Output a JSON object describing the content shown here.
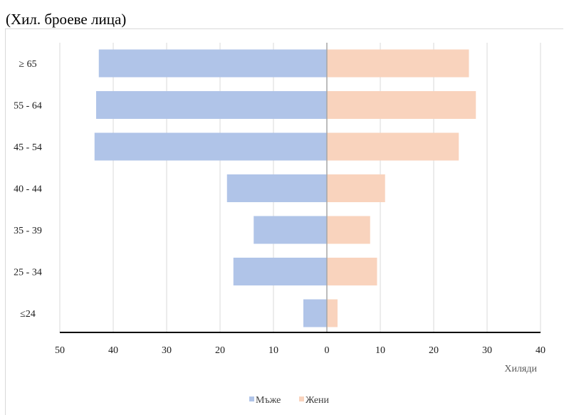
{
  "header": {
    "units": "(Хил. броеве лица)"
  },
  "chart_data": {
    "type": "bar",
    "orientation": "horizontal",
    "layout": "population-pyramid",
    "categories": [
      "≥ 65",
      "55 - 64",
      "45 - 54",
      "40 - 44",
      "35 - 39",
      "25 - 34",
      "≤24"
    ],
    "series": [
      {
        "name": "Мъже",
        "values": [
          42.7,
          43.2,
          43.5,
          18.7,
          13.7,
          17.5,
          4.4
        ],
        "color": "#b0c4e8",
        "side": "left"
      },
      {
        "name": "Жени",
        "values": [
          26.6,
          27.9,
          24.7,
          10.9,
          8.1,
          9.4,
          2.0
        ],
        "color": "#f9d3bd",
        "side": "right"
      }
    ],
    "xlim": [
      -50,
      40
    ],
    "x_ticks": [
      -50,
      -40,
      -30,
      -20,
      -10,
      0,
      10,
      20,
      30,
      40
    ],
    "x_tick_labels": [
      "50",
      "40",
      "30",
      "20",
      "10",
      "0",
      "10",
      "20",
      "30",
      "40"
    ],
    "xlabel": "Хиляди",
    "ylabel": "",
    "grid": "vertical",
    "legend_position": "bottom-center"
  }
}
